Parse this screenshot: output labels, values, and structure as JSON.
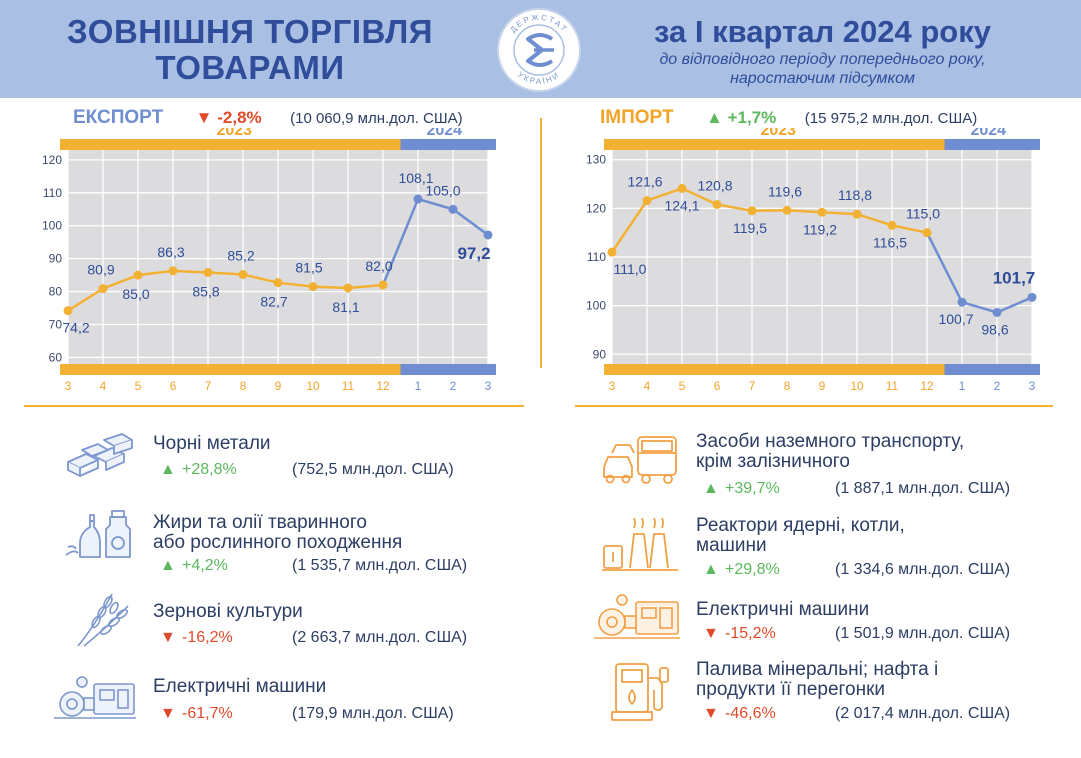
{
  "header": {
    "title_line1": "ЗОВНІШНЯ ТОРГІВЛЯ",
    "title_line2": "ТОВАРАМИ",
    "period": "за I квартал 2024 року",
    "subtitle_line1": "до відповідного періоду попереднього року,",
    "subtitle_line2": "наростаючим підсумком",
    "logo_text": "ДЕРЖСТАТ УКРАЇНИ"
  },
  "colors": {
    "header_bg": "#a9bfe3",
    "title": "#2f4d9a",
    "orange": "#f2b133",
    "blue": "#6e8ed1",
    "up": "#5cb85c",
    "down": "#e04a2a"
  },
  "export": {
    "label": "ЕКСПОРТ",
    "change_arrow": "▼",
    "change": "-2,8%",
    "total": "(10 060,9 млн.дол. США)"
  },
  "import": {
    "label": "ІМПОРТ",
    "change_arrow": "▲",
    "change": "+1,7%",
    "total": "(15 975,2  млн.дол. США)"
  },
  "chart_data": [
    {
      "type": "line",
      "name": "export",
      "year_labels": [
        "2023",
        "2024"
      ],
      "x": [
        "3",
        "4",
        "5",
        "6",
        "7",
        "8",
        "9",
        "10",
        "11",
        "12",
        "1",
        "2",
        "3"
      ],
      "values": [
        74.2,
        80.9,
        85.0,
        86.3,
        85.8,
        85.2,
        82.7,
        81.5,
        81.1,
        82.0,
        108.1,
        105.0,
        97.2
      ],
      "value_labels": [
        "74,2",
        "80,9",
        "85,0",
        "86,3",
        "85,8",
        "85,2",
        "82,7",
        "81,5",
        "81,1",
        "82,0",
        "108,1",
        "105,0",
        "97,2"
      ],
      "yticks": [
        "60",
        "70",
        "80",
        "90",
        "100",
        "110",
        "120"
      ],
      "ylim": [
        58,
        123
      ],
      "split_index": 9,
      "grid": true
    },
    {
      "type": "line",
      "name": "import",
      "year_labels": [
        "2023",
        "2024"
      ],
      "x": [
        "3",
        "4",
        "5",
        "6",
        "7",
        "8",
        "9",
        "10",
        "11",
        "12",
        "1",
        "2",
        "3"
      ],
      "values": [
        111.0,
        121.6,
        124.1,
        120.8,
        119.5,
        119.6,
        119.2,
        118.8,
        116.5,
        115.0,
        100.7,
        98.6,
        101.7
      ],
      "value_labels": [
        "111,0",
        "121,6",
        "124,1",
        "120,8",
        "119,5",
        "119,6",
        "119,2",
        "118,8",
        "116,5",
        "115,0",
        "100,7",
        "98,6",
        "101,7"
      ],
      "yticks": [
        "90",
        "100",
        "110",
        "120",
        "130"
      ],
      "ylim": [
        88,
        132
      ],
      "split_index": 9,
      "grid": true
    }
  ],
  "export_products": [
    {
      "name_line1": "Чорні метали",
      "name_line2": "",
      "arrow": "▲",
      "change": "+28,8%",
      "value": "(752,5 млн.дол. США)",
      "icon": "metal-bars-icon"
    },
    {
      "name_line1": "Жири та олії тваринного",
      "name_line2": "або рослинного походження",
      "arrow": "▲",
      "change": "+4,2%",
      "value": "(1 535,7 млн.дол. США)",
      "icon": "oil-bottles-icon"
    },
    {
      "name_line1": "Зернові культури",
      "name_line2": "",
      "arrow": "▼",
      "change": "-16,2%",
      "value": "(2 663,7 млн.дол. США)",
      "icon": "wheat-icon"
    },
    {
      "name_line1": "Електричні машини",
      "name_line2": "",
      "arrow": "▼",
      "change": "-61,7%",
      "value": "(179,9 млн.дол. США)",
      "icon": "electric-machine-icon"
    }
  ],
  "import_products": [
    {
      "name_line1": "Засоби наземного транспорту,",
      "name_line2": "крім залізничного",
      "arrow": "▲",
      "change": "+39,7%",
      "value": "(1 887,1 млн.дол. США)",
      "icon": "vehicles-icon"
    },
    {
      "name_line1": "Реактори ядерні, котли,",
      "name_line2": "машини",
      "arrow": "▲",
      "change": "+29,8%",
      "value": "(1 334,6 млн.дол. США)",
      "icon": "power-plant-icon"
    },
    {
      "name_line1": "Електричні машини",
      "name_line2": "",
      "arrow": "▼",
      "change": "-15,2%",
      "value": "(1 501,9 млн.дол. США)",
      "icon": "electric-machine-icon"
    },
    {
      "name_line1": "Палива мінеральні; нафта і",
      "name_line2": "продукти її перегонки",
      "arrow": "▼",
      "change": "-46,6%",
      "value": "(2 017,4 млн.дол. США)",
      "icon": "fuel-pump-icon"
    }
  ]
}
